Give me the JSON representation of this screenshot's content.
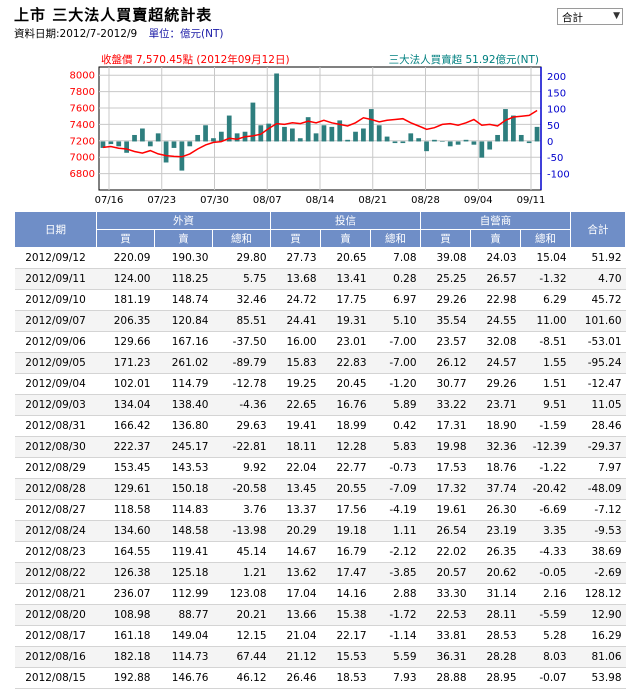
{
  "header": {
    "title": "上市 三大法人買賣超統計表",
    "date_range": "資料日期:2012/7-2012/9",
    "unit": "單位：億元(NT)"
  },
  "select": {
    "value": "合計"
  },
  "chart_data": {
    "type": "bar+line",
    "left_legend": "收盤價 7,570.45點 (2012年09月12日)",
    "right_legend": "三大法人買賣超 51.92億元(NT)",
    "x_tick_labels": [
      "07/16",
      "07/23",
      "07/30",
      "08/07",
      "08/14",
      "08/21",
      "08/28",
      "09/04",
      "09/11"
    ],
    "left_axis": {
      "ticks": [
        "6800",
        "7000",
        "7200",
        "7400",
        "7600",
        "7800",
        "8000"
      ],
      "range": [
        6600,
        8100
      ]
    },
    "right_axis": {
      "ticks": [
        "-100",
        "-50",
        "0",
        "50",
        "100",
        "150",
        "200"
      ],
      "range": [
        -150,
        230
      ]
    },
    "grid": true,
    "colors": {
      "bars": "#2e7e7e",
      "line": "#ff0000",
      "left_axis_text": "#ff0000",
      "right_axis_text": "#0000cc",
      "right_legend_text": "#008080"
    },
    "series": [
      {
        "name": "三大法人買賣超",
        "axis": "right",
        "values": [
          -20,
          -8,
          -15,
          -35,
          20,
          40,
          -15,
          25,
          -65,
          -20,
          -90,
          -15,
          20,
          50,
          10,
          30,
          80,
          25,
          30,
          120,
          50,
          55,
          210,
          45,
          40,
          10,
          75,
          25,
          50,
          45,
          65,
          5,
          30,
          40,
          100,
          50,
          15,
          -5,
          -5,
          25,
          10,
          -30,
          5,
          0,
          -15,
          -10,
          5,
          -10,
          -50,
          -25,
          20,
          100,
          80,
          20,
          -5,
          45
        ]
      },
      {
        "name": "收盤價",
        "axis": "left",
        "values": [
          7120,
          7130,
          7110,
          7100,
          7070,
          7050,
          7080,
          7040,
          7020,
          7010,
          7005,
          7040,
          7100,
          7150,
          7180,
          7190,
          7230,
          7220,
          7250,
          7260,
          7280,
          7350,
          7410,
          7400,
          7420,
          7410,
          7440,
          7420,
          7450,
          7420,
          7400,
          7380,
          7420,
          7480,
          7460,
          7430,
          7450,
          7460,
          7470,
          7420,
          7380,
          7340,
          7360,
          7400,
          7410,
          7390,
          7420,
          7460,
          7390,
          7400,
          7380,
          7450,
          7490,
          7500,
          7510,
          7570
        ]
      }
    ]
  },
  "table": {
    "group_headers": [
      "日期",
      "外資",
      "投信",
      "自營商",
      "合計"
    ],
    "sub_headers": [
      "買",
      "賣",
      "總和",
      "買",
      "賣",
      "總和",
      "買",
      "賣",
      "總和"
    ],
    "rows": [
      [
        "2012/09/12",
        "220.09",
        "190.30",
        "29.80",
        "27.73",
        "20.65",
        "7.08",
        "39.08",
        "24.03",
        "15.04",
        "51.92"
      ],
      [
        "2012/09/11",
        "124.00",
        "118.25",
        "5.75",
        "13.68",
        "13.41",
        "0.28",
        "25.25",
        "26.57",
        "-1.32",
        "4.70"
      ],
      [
        "2012/09/10",
        "181.19",
        "148.74",
        "32.46",
        "24.72",
        "17.75",
        "6.97",
        "29.26",
        "22.98",
        "6.29",
        "45.72"
      ],
      [
        "2012/09/07",
        "206.35",
        "120.84",
        "85.51",
        "24.41",
        "19.31",
        "5.10",
        "35.54",
        "24.55",
        "11.00",
        "101.60"
      ],
      [
        "2012/09/06",
        "129.66",
        "167.16",
        "-37.50",
        "16.00",
        "23.01",
        "-7.00",
        "23.57",
        "32.08",
        "-8.51",
        "-53.01"
      ],
      [
        "2012/09/05",
        "171.23",
        "261.02",
        "-89.79",
        "15.83",
        "22.83",
        "-7.00",
        "26.12",
        "24.57",
        "1.55",
        "-95.24"
      ],
      [
        "2012/09/04",
        "102.01",
        "114.79",
        "-12.78",
        "19.25",
        "20.45",
        "-1.20",
        "30.77",
        "29.26",
        "1.51",
        "-12.47"
      ],
      [
        "2012/09/03",
        "134.04",
        "138.40",
        "-4.36",
        "22.65",
        "16.76",
        "5.89",
        "33.22",
        "23.71",
        "9.51",
        "11.05"
      ],
      [
        "2012/08/31",
        "166.42",
        "136.80",
        "29.63",
        "19.41",
        "18.99",
        "0.42",
        "17.31",
        "18.90",
        "-1.59",
        "28.46"
      ],
      [
        "2012/08/30",
        "222.37",
        "245.17",
        "-22.81",
        "18.11",
        "12.28",
        "5.83",
        "19.98",
        "32.36",
        "-12.39",
        "-29.37"
      ],
      [
        "2012/08/29",
        "153.45",
        "143.53",
        "9.92",
        "22.04",
        "22.77",
        "-0.73",
        "17.53",
        "18.76",
        "-1.22",
        "7.97"
      ],
      [
        "2012/08/28",
        "129.61",
        "150.18",
        "-20.58",
        "13.45",
        "20.55",
        "-7.09",
        "17.32",
        "37.74",
        "-20.42",
        "-48.09"
      ],
      [
        "2012/08/27",
        "118.58",
        "114.83",
        "3.76",
        "13.37",
        "17.56",
        "-4.19",
        "19.61",
        "26.30",
        "-6.69",
        "-7.12"
      ],
      [
        "2012/08/24",
        "134.60",
        "148.58",
        "-13.98",
        "20.29",
        "19.18",
        "1.11",
        "26.54",
        "23.19",
        "3.35",
        "-9.53"
      ],
      [
        "2012/08/23",
        "164.55",
        "119.41",
        "45.14",
        "14.67",
        "16.79",
        "-2.12",
        "22.02",
        "26.35",
        "-4.33",
        "38.69"
      ],
      [
        "2012/08/22",
        "126.38",
        "125.18",
        "1.21",
        "13.62",
        "17.47",
        "-3.85",
        "20.57",
        "20.62",
        "-0.05",
        "-2.69"
      ],
      [
        "2012/08/21",
        "236.07",
        "112.99",
        "123.08",
        "17.04",
        "14.16",
        "2.88",
        "33.30",
        "31.14",
        "2.16",
        "128.12"
      ],
      [
        "2012/08/20",
        "108.98",
        "88.77",
        "20.21",
        "13.66",
        "15.38",
        "-1.72",
        "22.53",
        "28.11",
        "-5.59",
        "12.90"
      ],
      [
        "2012/08/17",
        "161.18",
        "149.04",
        "12.15",
        "21.04",
        "22.17",
        "-1.14",
        "33.81",
        "28.53",
        "5.28",
        "16.29"
      ],
      [
        "2012/08/16",
        "182.18",
        "114.73",
        "67.44",
        "21.12",
        "15.53",
        "5.59",
        "36.31",
        "28.28",
        "8.03",
        "81.06"
      ],
      [
        "2012/08/15",
        "192.88",
        "146.76",
        "46.12",
        "26.46",
        "18.53",
        "7.93",
        "28.88",
        "28.95",
        "-0.07",
        "53.98"
      ]
    ]
  }
}
